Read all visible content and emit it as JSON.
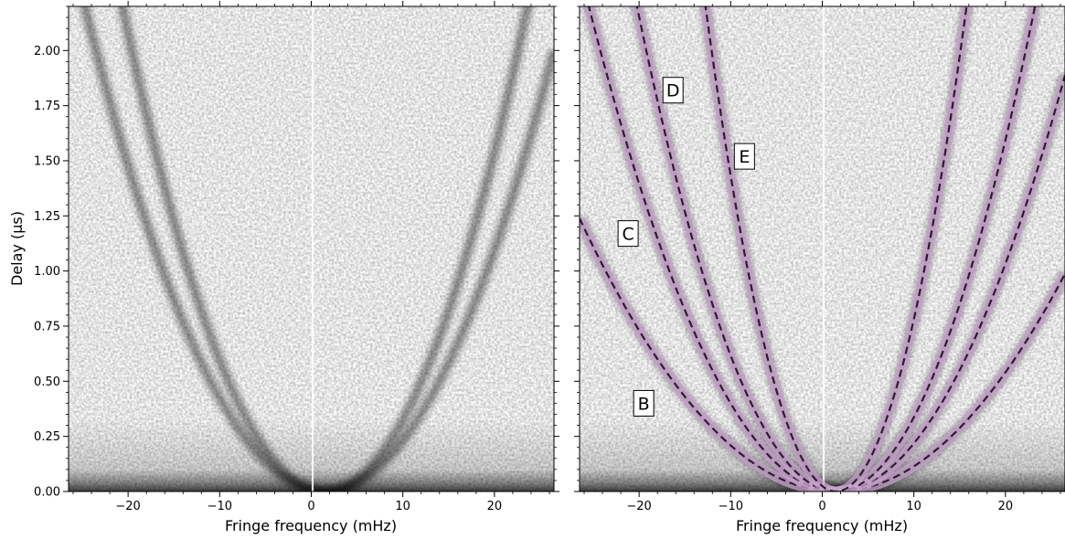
{
  "chart_data": [
    {
      "type": "heatmap",
      "title": "",
      "xlabel": "Fringe frequency (mHz)",
      "ylabel": "Delay (μs)",
      "xlim": [
        -26.5,
        26.5
      ],
      "ylim": [
        0,
        2.2
      ],
      "xticks": [
        -20,
        -10,
        0,
        10,
        20
      ],
      "xtick_labels": [
        "−20",
        "−10",
        "0",
        "10",
        "20"
      ],
      "yticks": [
        0.0,
        0.25,
        0.5,
        0.75,
        1.0,
        1.25,
        1.5,
        1.75,
        2.0
      ],
      "ytick_labels": [
        "0.00",
        "0.25",
        "0.50",
        "0.75",
        "1.00",
        "1.25",
        "1.50",
        "1.75",
        "2.00"
      ],
      "colormap": "grayscale (white = low, black = high)",
      "features": {
        "arcs": [
          {
            "apex_mHz": 1.5,
            "curvature": 0.0032
          },
          {
            "apex_mHz": 1.5,
            "curvature": 0.0045
          }
        ],
        "center_gap_mHz": 0,
        "low_delay_band_us": [
          0,
          0.15
        ]
      }
    },
    {
      "type": "heatmap",
      "title": "",
      "xlabel": "Fringe frequency (mHz)",
      "ylabel": "",
      "xlim": [
        -26.5,
        26.5
      ],
      "ylim": [
        0,
        2.2
      ],
      "xticks": [
        -20,
        -10,
        0,
        10,
        20
      ],
      "xtick_labels": [
        "−20",
        "−10",
        "0",
        "10",
        "20"
      ],
      "yticks": [
        0.0,
        0.25,
        0.5,
        0.75,
        1.0,
        1.25,
        1.5,
        1.75,
        2.0
      ],
      "ytick_labels": [
        "",
        "",
        "",
        "",
        "",
        "",
        "",
        "",
        ""
      ],
      "colormap": "grayscale (white = low, black = high)",
      "overlay_colors": {
        "fit_line": "#2a1f2a",
        "uncertainty_band": "#c9a3cf"
      },
      "series": [
        {
          "name": "B",
          "apex_mHz": 1.5,
          "curvature": 0.00158,
          "label_at": [
            -19.5,
            0.4
          ]
        },
        {
          "name": "C",
          "apex_mHz": 1.5,
          "curvature": 0.00302,
          "label_at": [
            -21.2,
            1.17
          ]
        },
        {
          "name": "D",
          "apex_mHz": 1.5,
          "curvature": 0.00466,
          "label_at": [
            -16.3,
            1.82
          ]
        },
        {
          "name": "E",
          "apex_mHz": 1.5,
          "curvature": 0.01083,
          "label_at": [
            -8.5,
            1.52
          ]
        }
      ],
      "features": {
        "center_gap_mHz": 0,
        "low_delay_band_us": [
          0,
          0.15
        ]
      }
    }
  ]
}
